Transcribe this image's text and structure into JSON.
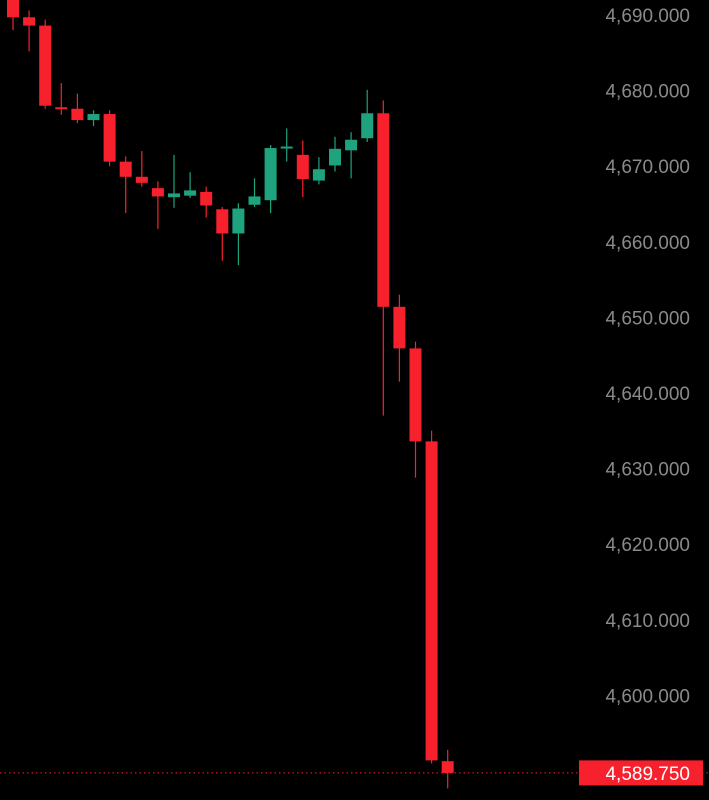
{
  "colors": {
    "background": "#000000",
    "up": "#1fa37f",
    "down": "#f7212e",
    "axis_text": "#8a8a8a",
    "price_line": "#f7212e"
  },
  "current_price": {
    "value": 4589.75,
    "label": "4,589.750"
  },
  "chart_data": {
    "type": "candlestick",
    "title": "",
    "xlabel": "",
    "ylabel": "",
    "ylim": [
      4586.0,
      4693.0
    ],
    "y_ticks": [
      {
        "value": 4690,
        "label": "4,690.000"
      },
      {
        "value": 4680,
        "label": "4,680.000"
      },
      {
        "value": 4670,
        "label": "4,670.000"
      },
      {
        "value": 4660,
        "label": "4,660.000"
      },
      {
        "value": 4650,
        "label": "4,650.000"
      },
      {
        "value": 4640,
        "label": "4,640.000"
      },
      {
        "value": 4630,
        "label": "4,630.000"
      },
      {
        "value": 4620,
        "label": "4,620.000"
      },
      {
        "value": 4610,
        "label": "4,610.000"
      },
      {
        "value": 4600,
        "label": "4,600.000"
      }
    ],
    "candles": [
      {
        "o": 4692.5,
        "h": 4694.0,
        "l": 4688.0,
        "c": 4689.7
      },
      {
        "o": 4689.7,
        "h": 4690.6,
        "l": 4685.2,
        "c": 4688.6
      },
      {
        "o": 4688.6,
        "h": 4689.4,
        "l": 4677.6,
        "c": 4678.0
      },
      {
        "o": 4677.8,
        "h": 4681.0,
        "l": 4676.8,
        "c": 4677.6
      },
      {
        "o": 4677.6,
        "h": 4679.6,
        "l": 4675.7,
        "c": 4676.1
      },
      {
        "o": 4676.1,
        "h": 4677.4,
        "l": 4675.3,
        "c": 4676.9
      },
      {
        "o": 4676.9,
        "h": 4677.4,
        "l": 4670.0,
        "c": 4670.6
      },
      {
        "o": 4670.6,
        "h": 4671.3,
        "l": 4663.8,
        "c": 4668.6
      },
      {
        "o": 4668.6,
        "h": 4672.0,
        "l": 4667.3,
        "c": 4667.8
      },
      {
        "o": 4667.1,
        "h": 4668.0,
        "l": 4661.7,
        "c": 4666.0
      },
      {
        "o": 4665.9,
        "h": 4671.5,
        "l": 4664.5,
        "c": 4666.4
      },
      {
        "o": 4666.1,
        "h": 4669.2,
        "l": 4665.8,
        "c": 4666.8
      },
      {
        "o": 4666.6,
        "h": 4667.3,
        "l": 4663.2,
        "c": 4664.8
      },
      {
        "o": 4664.3,
        "h": 4664.6,
        "l": 4657.5,
        "c": 4661.1
      },
      {
        "o": 4661.1,
        "h": 4665.1,
        "l": 4656.9,
        "c": 4664.4
      },
      {
        "o": 4664.9,
        "h": 4668.4,
        "l": 4664.6,
        "c": 4666.0
      },
      {
        "o": 4665.5,
        "h": 4672.8,
        "l": 4663.8,
        "c": 4672.4
      },
      {
        "o": 4672.4,
        "h": 4675.0,
        "l": 4670.6,
        "c": 4672.6
      },
      {
        "o": 4671.5,
        "h": 4673.4,
        "l": 4665.9,
        "c": 4668.3
      },
      {
        "o": 4668.1,
        "h": 4671.2,
        "l": 4667.6,
        "c": 4669.6
      },
      {
        "o": 4670.1,
        "h": 4673.9,
        "l": 4669.3,
        "c": 4672.3
      },
      {
        "o": 4672.1,
        "h": 4674.5,
        "l": 4668.4,
        "c": 4673.5
      },
      {
        "o": 4673.7,
        "h": 4680.1,
        "l": 4673.2,
        "c": 4677.0
      },
      {
        "o": 4677.0,
        "h": 4678.7,
        "l": 4637.0,
        "c": 4651.4
      },
      {
        "o": 4651.4,
        "h": 4653.0,
        "l": 4641.5,
        "c": 4645.9
      },
      {
        "o": 4645.9,
        "h": 4646.8,
        "l": 4628.8,
        "c": 4633.6
      },
      {
        "o": 4633.6,
        "h": 4635.0,
        "l": 4591.0,
        "c": 4591.4
      },
      {
        "o": 4591.3,
        "h": 4592.8,
        "l": 4587.7,
        "c": 4589.75
      }
    ]
  }
}
